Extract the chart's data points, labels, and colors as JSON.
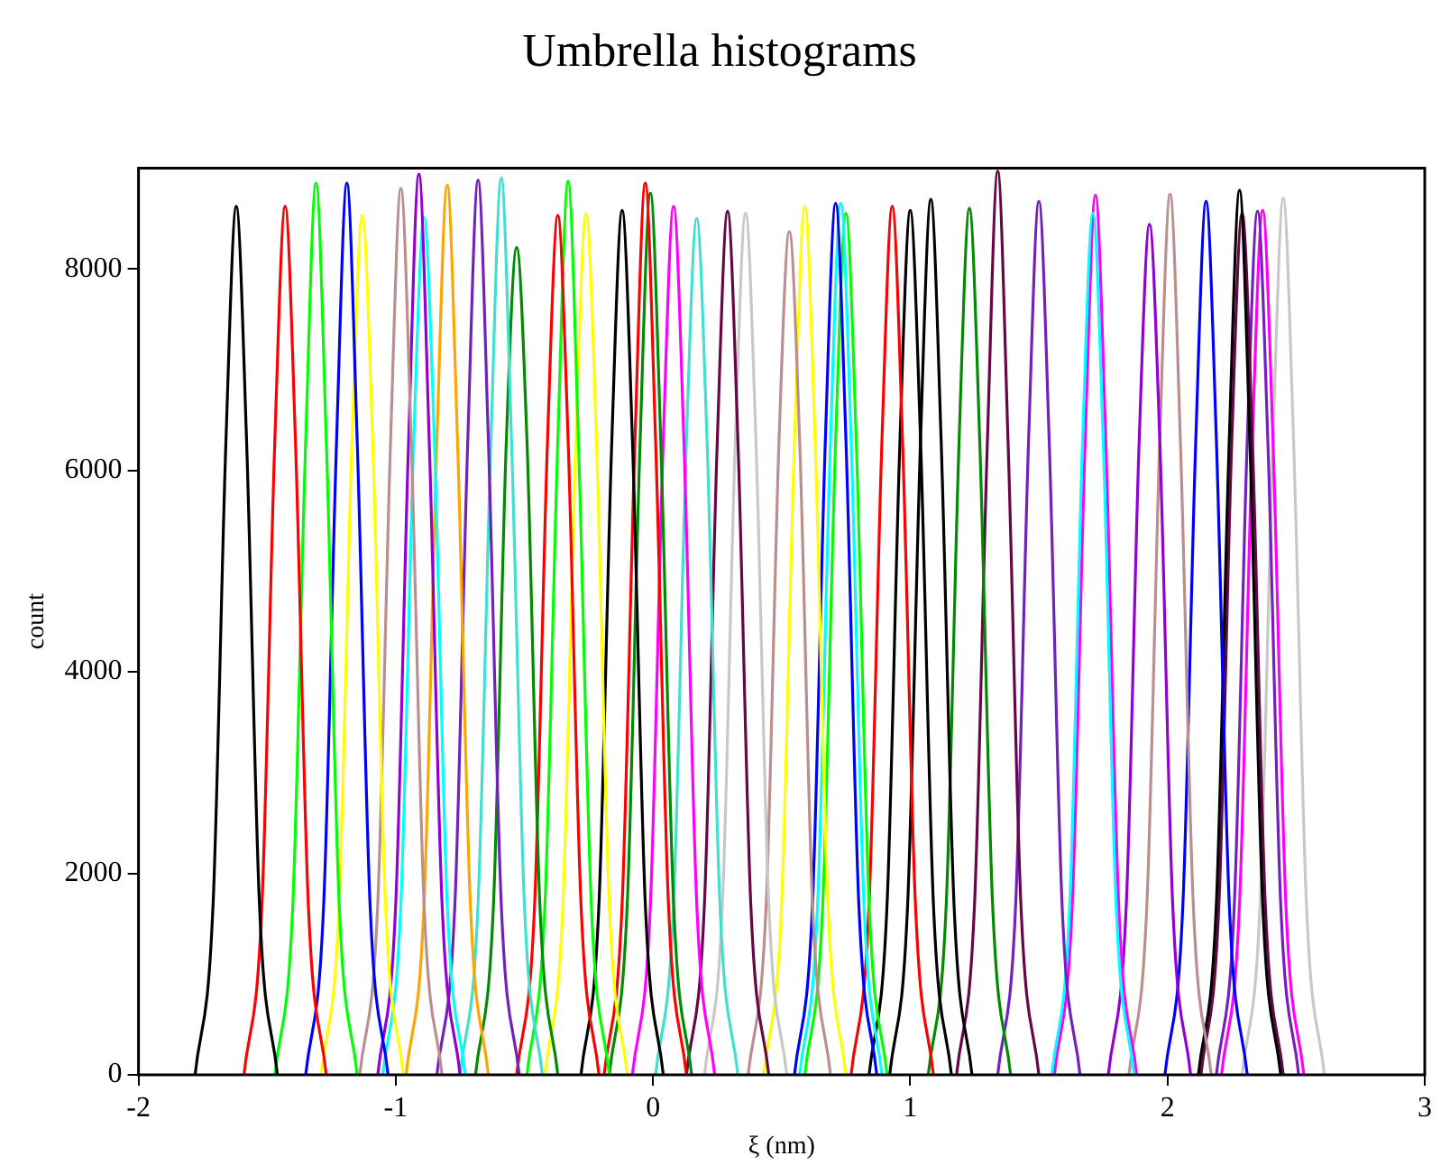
{
  "chart_data": {
    "type": "line",
    "title": "Umbrella histograms",
    "xlabel": "ξ (nm)",
    "ylabel": "count",
    "xlim": [
      -2,
      3
    ],
    "xticks": [
      -2,
      -1,
      0,
      1,
      2,
      3
    ],
    "ylim": [
      0,
      9000
    ],
    "yticks": [
      0,
      2000,
      4000,
      6000,
      8000
    ],
    "marker": "none",
    "legend": false,
    "series": [
      {
        "color": "#000000",
        "x": [
          -1.78,
          -1.71,
          -1.66,
          -1.62,
          -1.58,
          -1.53,
          -1.46
        ],
        "values": [
          0,
          1700,
          6300,
          8620,
          6300,
          1700,
          0
        ]
      },
      {
        "color": "#ff0000",
        "x": [
          -1.59,
          -1.52,
          -1.47,
          -1.43,
          -1.39,
          -1.34,
          -1.27
        ],
        "values": [
          0,
          1700,
          6300,
          8620,
          6300,
          1700,
          0
        ]
      },
      {
        "color": "#00ff00",
        "x": [
          -1.47,
          -1.4,
          -1.35,
          -1.31,
          -1.27,
          -1.22,
          -1.15
        ],
        "values": [
          0,
          1700,
          6300,
          8850,
          6300,
          1700,
          0
        ]
      },
      {
        "color": "#0000ff",
        "x": [
          -1.35,
          -1.28,
          -1.23,
          -1.19,
          -1.15,
          -1.1,
          -1.03
        ],
        "values": [
          0,
          1700,
          6300,
          8850,
          6300,
          1700,
          0
        ]
      },
      {
        "color": "#ffff00",
        "x": [
          -1.29,
          -1.22,
          -1.17,
          -1.13,
          -1.09,
          -1.04,
          -0.97
        ],
        "values": [
          0,
          1700,
          6300,
          8530,
          6300,
          1700,
          0
        ]
      },
      {
        "color": "#bc8f8f",
        "x": [
          -1.14,
          -1.07,
          -1.02,
          -0.98,
          -0.94,
          -0.89,
          -0.82
        ],
        "values": [
          0,
          1700,
          6300,
          8800,
          6300,
          1700,
          0
        ]
      },
      {
        "color": "#9400d3",
        "x": [
          -1.07,
          -1.0,
          -0.95,
          -0.91,
          -0.87,
          -0.82,
          -0.75
        ],
        "values": [
          0,
          1700,
          6300,
          8940,
          6300,
          1700,
          0
        ]
      },
      {
        "color": "#00ffff",
        "x": [
          -1.05,
          -0.98,
          -0.93,
          -0.89,
          -0.85,
          -0.8,
          -0.73
        ],
        "values": [
          0,
          1700,
          6300,
          8510,
          6300,
          1700,
          0
        ]
      },
      {
        "color": "#ffa500",
        "x": [
          -0.96,
          -0.89,
          -0.84,
          -0.8,
          -0.76,
          -0.71,
          -0.64
        ],
        "values": [
          0,
          1700,
          6300,
          8830,
          6300,
          1700,
          0
        ]
      },
      {
        "color": "#7221bc",
        "x": [
          -0.84,
          -0.77,
          -0.72,
          -0.68,
          -0.64,
          -0.59,
          -0.52
        ],
        "values": [
          0,
          1700,
          6300,
          8880,
          6300,
          1700,
          0
        ]
      },
      {
        "color": "#40e0d0",
        "x": [
          -0.75,
          -0.68,
          -0.63,
          -0.59,
          -0.55,
          -0.5,
          -0.43
        ],
        "values": [
          0,
          1700,
          6300,
          8900,
          6300,
          1700,
          0
        ]
      },
      {
        "color": "#008b00",
        "x": [
          -0.69,
          -0.62,
          -0.57,
          -0.53,
          -0.49,
          -0.44,
          -0.37
        ],
        "values": [
          0,
          1700,
          6300,
          8210,
          6300,
          1700,
          0
        ]
      },
      {
        "color": "#ff0000",
        "x": [
          -0.53,
          -0.46,
          -0.41,
          -0.37,
          -0.33,
          -0.28,
          -0.21
        ],
        "values": [
          0,
          1700,
          6300,
          8530,
          6300,
          1700,
          0
        ]
      },
      {
        "color": "#00ff00",
        "x": [
          -0.49,
          -0.42,
          -0.37,
          -0.33,
          -0.29,
          -0.24,
          -0.17
        ],
        "values": [
          0,
          1700,
          6300,
          8870,
          6300,
          1700,
          0
        ]
      },
      {
        "color": "#ffff00",
        "x": [
          -0.42,
          -0.35,
          -0.3,
          -0.26,
          -0.22,
          -0.17,
          -0.1
        ],
        "values": [
          0,
          1700,
          6300,
          8550,
          6300,
          1700,
          0
        ]
      },
      {
        "color": "#000000",
        "x": [
          -0.28,
          -0.21,
          -0.16,
          -0.12,
          -0.08,
          -0.03,
          0.04
        ],
        "values": [
          0,
          1700,
          6300,
          8580,
          6300,
          1700,
          0
        ]
      },
      {
        "color": "#ff0000",
        "x": [
          -0.19,
          -0.12,
          -0.07,
          -0.03,
          0.01,
          0.06,
          0.13
        ],
        "values": [
          0,
          1700,
          6300,
          8850,
          6300,
          1700,
          0
        ]
      },
      {
        "color": "#008b00",
        "x": [
          -0.17,
          -0.1,
          -0.05,
          -0.01,
          0.03,
          0.08,
          0.15
        ],
        "values": [
          0,
          1700,
          6300,
          8750,
          6300,
          1700,
          0
        ]
      },
      {
        "color": "#ff00ff",
        "x": [
          -0.08,
          -0.01,
          0.04,
          0.08,
          0.12,
          0.17,
          0.24
        ],
        "values": [
          0,
          1700,
          6300,
          8620,
          6300,
          1700,
          0
        ]
      },
      {
        "color": "#40e0d0",
        "x": [
          0.01,
          0.08,
          0.13,
          0.17,
          0.21,
          0.26,
          0.33
        ],
        "values": [
          0,
          1700,
          6300,
          8500,
          6300,
          1700,
          0
        ]
      },
      {
        "color": "#670748",
        "x": [
          0.13,
          0.2,
          0.25,
          0.29,
          0.33,
          0.38,
          0.45
        ],
        "values": [
          0,
          1700,
          6300,
          8570,
          6300,
          1700,
          0
        ]
      },
      {
        "color": "#c8c8c8",
        "x": [
          0.2,
          0.27,
          0.32,
          0.36,
          0.4,
          0.45,
          0.52
        ],
        "values": [
          0,
          1700,
          6300,
          8550,
          6300,
          1700,
          0
        ]
      },
      {
        "color": "#bc8f8f",
        "x": [
          0.37,
          0.44,
          0.49,
          0.53,
          0.57,
          0.62,
          0.69
        ],
        "values": [
          0,
          1700,
          6300,
          8370,
          6300,
          1700,
          0
        ]
      },
      {
        "color": "#ffff00",
        "x": [
          0.43,
          0.5,
          0.55,
          0.59,
          0.63,
          0.68,
          0.75
        ],
        "values": [
          0,
          1700,
          6300,
          8620,
          6300,
          1700,
          0
        ]
      },
      {
        "color": "#0000ff",
        "x": [
          0.55,
          0.62,
          0.67,
          0.71,
          0.75,
          0.8,
          0.87
        ],
        "values": [
          0,
          1700,
          6300,
          8650,
          6300,
          1700,
          0
        ]
      },
      {
        "color": "#00ffff",
        "x": [
          0.57,
          0.64,
          0.69,
          0.73,
          0.77,
          0.82,
          0.89
        ],
        "values": [
          0,
          1700,
          6300,
          8650,
          6300,
          1700,
          0
        ]
      },
      {
        "color": "#00ff00",
        "x": [
          0.59,
          0.66,
          0.71,
          0.75,
          0.79,
          0.84,
          0.91
        ],
        "values": [
          0,
          1700,
          6300,
          8550,
          6300,
          1700,
          0
        ]
      },
      {
        "color": "#ff0000",
        "x": [
          0.77,
          0.84,
          0.89,
          0.93,
          0.97,
          1.02,
          1.09
        ],
        "values": [
          0,
          1700,
          6300,
          8620,
          6300,
          1700,
          0
        ]
      },
      {
        "color": "#000000",
        "x": [
          0.84,
          0.91,
          0.96,
          1.0,
          1.04,
          1.09,
          1.16
        ],
        "values": [
          0,
          1700,
          6300,
          8580,
          6300,
          1700,
          0
        ]
      },
      {
        "color": "#000000",
        "x": [
          0.92,
          0.99,
          1.04,
          1.08,
          1.12,
          1.17,
          1.24
        ],
        "values": [
          0,
          1700,
          6300,
          8690,
          6300,
          1700,
          0
        ]
      },
      {
        "color": "#008b00",
        "x": [
          1.07,
          1.14,
          1.19,
          1.23,
          1.27,
          1.32,
          1.39
        ],
        "values": [
          0,
          1700,
          6300,
          8600,
          6300,
          1700,
          0
        ]
      },
      {
        "color": "#670748",
        "x": [
          1.18,
          1.25,
          1.3,
          1.34,
          1.38,
          1.43,
          1.5
        ],
        "values": [
          0,
          1700,
          6300,
          8970,
          6300,
          1700,
          0
        ]
      },
      {
        "color": "#7221bc",
        "x": [
          1.34,
          1.41,
          1.46,
          1.5,
          1.54,
          1.59,
          1.66
        ],
        "values": [
          0,
          1700,
          6300,
          8670,
          6300,
          1700,
          0
        ]
      },
      {
        "color": "#00ffff",
        "x": [
          1.55,
          1.62,
          1.67,
          1.71,
          1.75,
          1.8,
          1.87
        ],
        "values": [
          0,
          1700,
          6300,
          8550,
          6300,
          1700,
          0
        ]
      },
      {
        "color": "#ff00ff",
        "x": [
          1.56,
          1.63,
          1.68,
          1.72,
          1.76,
          1.81,
          1.88
        ],
        "values": [
          0,
          1700,
          6300,
          8730,
          6300,
          1700,
          0
        ]
      },
      {
        "color": "#9400d3",
        "x": [
          1.77,
          1.84,
          1.89,
          1.93,
          1.97,
          2.02,
          2.09
        ],
        "values": [
          0,
          1700,
          6300,
          8440,
          6300,
          1700,
          0
        ]
      },
      {
        "color": "#bc8f8f",
        "x": [
          1.85,
          1.92,
          1.97,
          2.01,
          2.05,
          2.1,
          2.17
        ],
        "values": [
          0,
          1700,
          6300,
          8740,
          6300,
          1700,
          0
        ]
      },
      {
        "color": "#0000ff",
        "x": [
          1.99,
          2.06,
          2.11,
          2.15,
          2.19,
          2.24,
          2.31
        ],
        "values": [
          0,
          1700,
          6300,
          8670,
          6300,
          1700,
          0
        ]
      },
      {
        "color": "#000000",
        "x": [
          2.12,
          2.19,
          2.24,
          2.28,
          2.32,
          2.37,
          2.44
        ],
        "values": [
          0,
          1700,
          6300,
          8780,
          6300,
          1700,
          0
        ]
      },
      {
        "color": "#670748",
        "x": [
          2.13,
          2.2,
          2.25,
          2.29,
          2.33,
          2.38,
          2.45
        ],
        "values": [
          0,
          1700,
          6300,
          8550,
          6300,
          1700,
          0
        ]
      },
      {
        "color": "#7221bc",
        "x": [
          2.19,
          2.26,
          2.31,
          2.35,
          2.39,
          2.44,
          2.51
        ],
        "values": [
          0,
          1700,
          6300,
          8570,
          6300,
          1700,
          0
        ]
      },
      {
        "color": "#ff00ff",
        "x": [
          2.21,
          2.28,
          2.33,
          2.37,
          2.41,
          2.46,
          2.53
        ],
        "values": [
          0,
          1700,
          6300,
          8580,
          6300,
          1700,
          0
        ]
      },
      {
        "color": "#c8c8c8",
        "x": [
          2.29,
          2.36,
          2.41,
          2.45,
          2.49,
          2.54,
          2.61
        ],
        "values": [
          0,
          1700,
          6300,
          8700,
          6300,
          1700,
          0
        ]
      }
    ]
  }
}
